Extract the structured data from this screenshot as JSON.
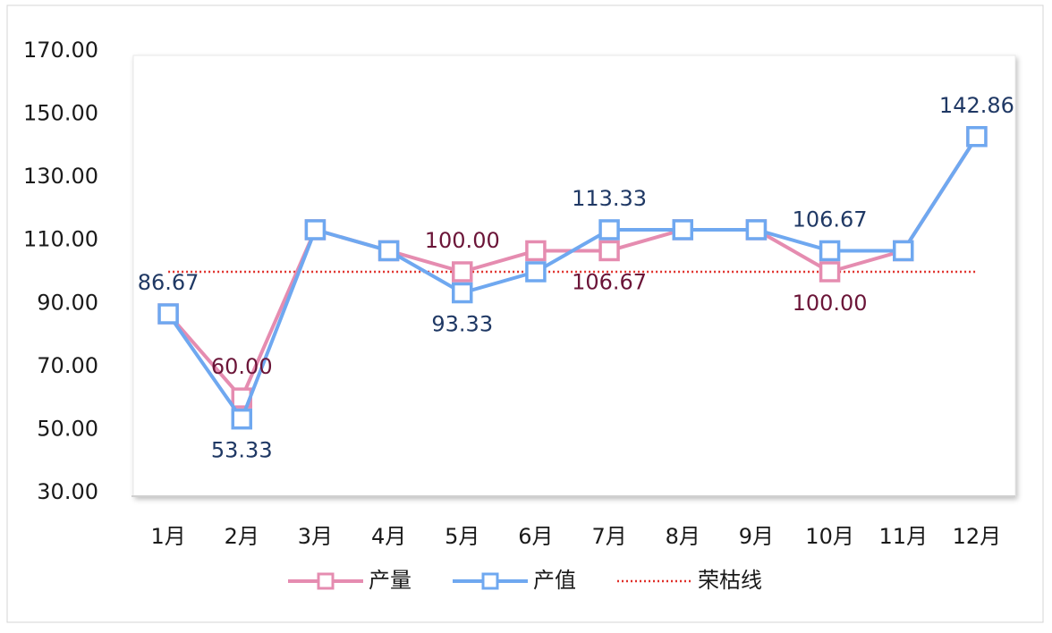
{
  "chart_data": {
    "type": "line",
    "categories": [
      "1月",
      "2月",
      "3月",
      "4月",
      "5月",
      "6月",
      "7月",
      "8月",
      "9月",
      "10月",
      "11月",
      "12月"
    ],
    "series": [
      {
        "name": "产量",
        "color": "#e58cb0",
        "label_color": "#6b1538",
        "values": [
          86.67,
          60.0,
          113.33,
          106.67,
          100.0,
          106.67,
          106.67,
          113.33,
          113.33,
          100.0,
          106.67,
          142.86
        ],
        "value_labels": [
          null,
          "60.00",
          null,
          null,
          "100.00",
          null,
          "106.67",
          null,
          null,
          "100.00",
          null,
          null
        ]
      },
      {
        "name": "产值",
        "color": "#6fa8f0",
        "label_color": "#1f3864",
        "values": [
          86.67,
          53.33,
          113.33,
          106.67,
          93.33,
          100.0,
          113.33,
          113.33,
          113.33,
          106.67,
          106.67,
          142.86
        ],
        "value_labels": [
          "86.67",
          "53.33",
          null,
          null,
          "93.33",
          null,
          "113.33",
          null,
          null,
          "106.67",
          null,
          "142.86"
        ]
      },
      {
        "name": "荣枯线",
        "color": "#e0302a",
        "style": "dotted",
        "values": [
          100,
          100,
          100,
          100,
          100,
          100,
          100,
          100,
          100,
          100,
          100,
          100
        ]
      }
    ],
    "ylim": [
      30,
      170
    ],
    "yticks": [
      {
        "value": 30,
        "label": "30.00"
      },
      {
        "value": 50,
        "label": "50.00"
      },
      {
        "value": 70,
        "label": "70.00"
      },
      {
        "value": 90,
        "label": "90.00"
      },
      {
        "value": 110,
        "label": "110.00"
      },
      {
        "value": 130,
        "label": "130.00"
      },
      {
        "value": 150,
        "label": "150.00"
      },
      {
        "value": 170,
        "label": "170.00"
      }
    ],
    "grid": false,
    "legend": "bottom"
  }
}
